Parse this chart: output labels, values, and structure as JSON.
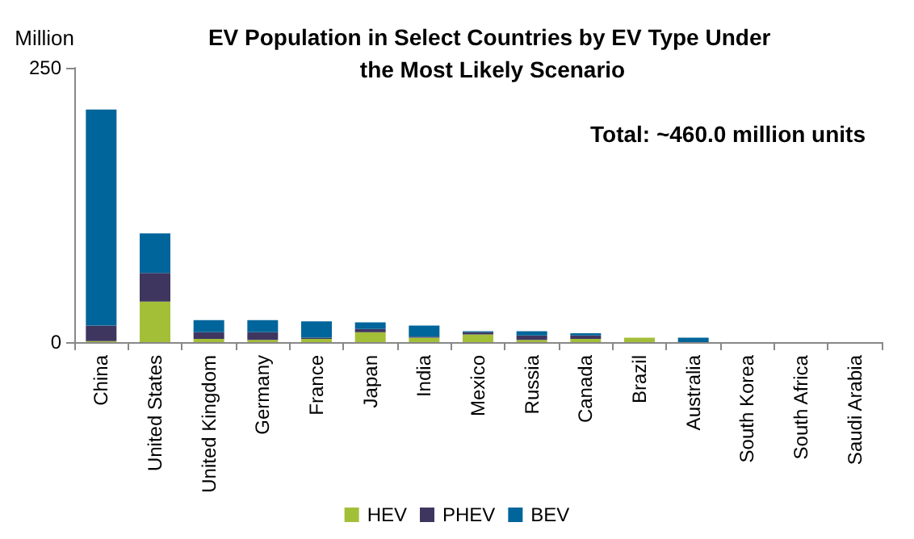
{
  "chart_data": {
    "type": "bar",
    "title": "EV Population in Select Countries by EV Type Under the Most Likely Scenario",
    "ylabel": "Million",
    "annotations": [
      "Total: ~460.0 million units"
    ],
    "categories": [
      "China",
      "United States",
      "United Kingdom",
      "Germany",
      "France",
      "Japan",
      "India",
      "Mexico",
      "Russia",
      "Canada",
      "Brazil",
      "Australia",
      "South Korea",
      "South Africa",
      "Saudi Arabia"
    ],
    "stacked": true,
    "ylim": [
      0,
      250
    ],
    "yticks": [
      0,
      250
    ],
    "grid": false,
    "legend": "bottom",
    "series": [
      {
        "name": "HEV",
        "color": "#a3bf38",
        "values": [
          1,
          37,
          3,
          2,
          3,
          9,
          4,
          7,
          2,
          3,
          4,
          null,
          null,
          null,
          null
        ]
      },
      {
        "name": "PHEV",
        "color": "#3f3660",
        "values": [
          14,
          26,
          6,
          7,
          1,
          3,
          1,
          2,
          4,
          3,
          null,
          null,
          null,
          null,
          null
        ]
      },
      {
        "name": "BEV",
        "color": "#00659a",
        "values": [
          197,
          36,
          11,
          11,
          15,
          6,
          10,
          1,
          4,
          2,
          null,
          4,
          null,
          null,
          null
        ]
      }
    ]
  }
}
